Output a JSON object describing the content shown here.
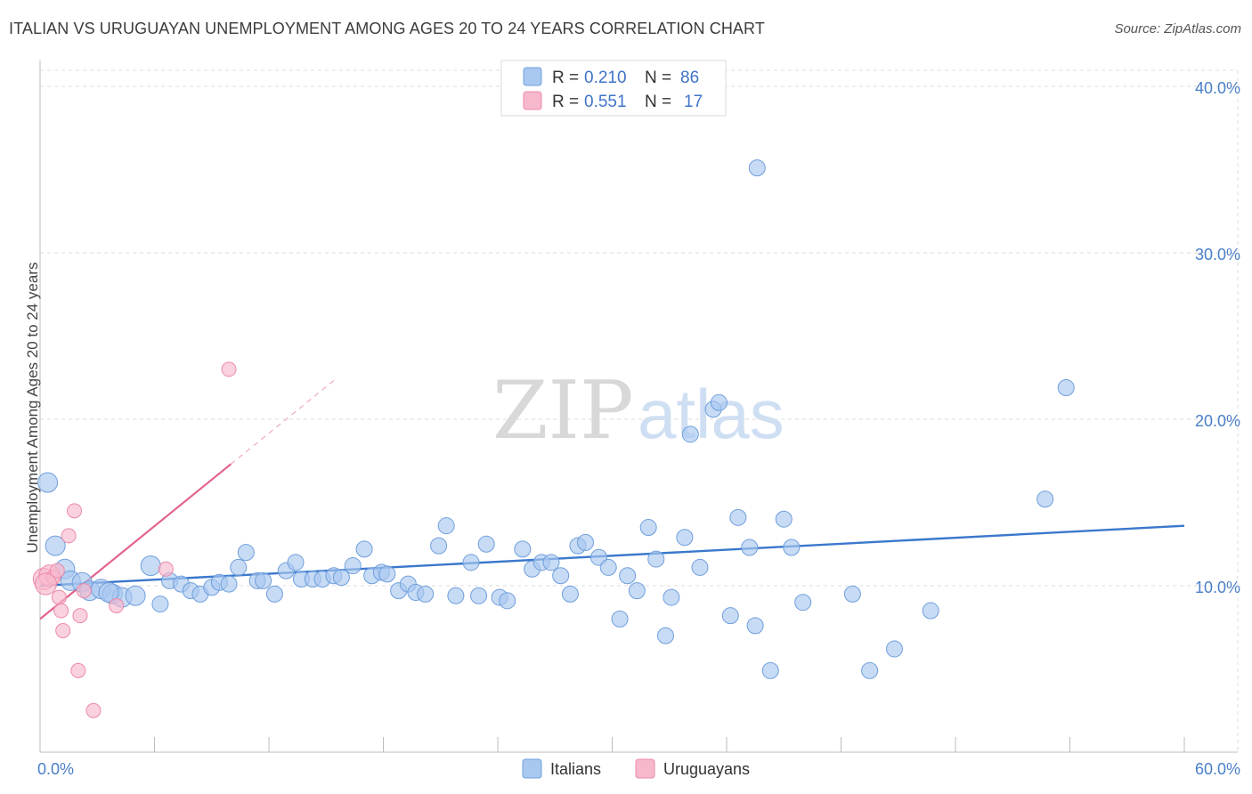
{
  "title": "ITALIAN VS URUGUAYAN UNEMPLOYMENT AMONG AGES 20 TO 24 YEARS CORRELATION CHART",
  "source": "Source: ZipAtlas.com",
  "watermark": {
    "zip": "ZIP",
    "atlas": "atlas"
  },
  "legend": {
    "rows": [
      {
        "r_label": "R =",
        "r_value": "0.210",
        "n_label": "N =",
        "n_value": "86",
        "color": "#a9c8f0"
      },
      {
        "r_label": "R =",
        "r_value": "0.551",
        "n_label": "N =",
        "n_value": "17",
        "color": "#f7b8cc"
      }
    ]
  },
  "bottom_legend": [
    {
      "label": "Italians",
      "color": "#a9c8f0"
    },
    {
      "label": "Uruguayans",
      "color": "#f7b8cc"
    }
  ],
  "chart_data": {
    "type": "scatter",
    "title": "ITALIAN VS URUGUAYAN UNEMPLOYMENT AMONG AGES 20 TO 24 YEARS CORRELATION CHART",
    "xlabel": "",
    "ylabel": "Unemployment Among Ages 20 to 24 years",
    "xlim": [
      0,
      60
    ],
    "ylim": [
      0,
      40
    ],
    "x_tick_labels": [
      "0.0%",
      "60.0%"
    ],
    "y_ticks": [
      10,
      20,
      30,
      40
    ],
    "y_tick_labels": [
      "10.0%",
      "20.0%",
      "30.0%",
      "40.0%"
    ],
    "grid": true,
    "legend_position": "top-center",
    "series": [
      {
        "name": "Italians",
        "color": "#a9c8f0",
        "stroke": "#6f9fdc",
        "line_color": "#3a78cc",
        "trend": {
          "x": [
            0,
            60
          ],
          "y": [
            10.0,
            13.6
          ]
        },
        "points": [
          [
            0.4,
            16.2
          ],
          [
            0.8,
            12.4
          ],
          [
            1.3,
            11.0
          ],
          [
            1.6,
            10.3
          ],
          [
            2.2,
            10.2
          ],
          [
            2.6,
            9.7
          ],
          [
            3.2,
            9.8
          ],
          [
            3.8,
            9.5
          ],
          [
            4.3,
            9.3
          ],
          [
            5.0,
            9.4
          ],
          [
            5.8,
            11.2
          ],
          [
            6.3,
            8.9
          ],
          [
            6.8,
            10.3
          ],
          [
            7.4,
            10.1
          ],
          [
            7.9,
            9.7
          ],
          [
            8.4,
            9.5
          ],
          [
            9.0,
            9.9
          ],
          [
            9.4,
            10.2
          ],
          [
            9.9,
            10.1
          ],
          [
            10.4,
            11.1
          ],
          [
            10.8,
            12.0
          ],
          [
            11.4,
            10.3
          ],
          [
            11.7,
            10.3
          ],
          [
            12.3,
            9.5
          ],
          [
            12.9,
            10.9
          ],
          [
            13.4,
            11.4
          ],
          [
            13.7,
            10.4
          ],
          [
            14.3,
            10.4
          ],
          [
            14.8,
            10.4
          ],
          [
            15.4,
            10.6
          ],
          [
            15.8,
            10.5
          ],
          [
            16.4,
            11.2
          ],
          [
            17.0,
            12.2
          ],
          [
            17.4,
            10.6
          ],
          [
            17.9,
            10.8
          ],
          [
            18.2,
            10.7
          ],
          [
            18.8,
            9.7
          ],
          [
            19.3,
            10.1
          ],
          [
            19.7,
            9.6
          ],
          [
            20.2,
            9.5
          ],
          [
            20.9,
            12.4
          ],
          [
            21.3,
            13.6
          ],
          [
            21.8,
            9.4
          ],
          [
            22.6,
            11.4
          ],
          [
            23.0,
            9.4
          ],
          [
            23.4,
            12.5
          ],
          [
            24.1,
            9.3
          ],
          [
            24.5,
            9.1
          ],
          [
            25.3,
            12.2
          ],
          [
            25.8,
            11.0
          ],
          [
            26.3,
            11.4
          ],
          [
            26.8,
            11.4
          ],
          [
            27.3,
            10.6
          ],
          [
            27.8,
            9.5
          ],
          [
            28.2,
            12.4
          ],
          [
            28.6,
            12.6
          ],
          [
            29.3,
            11.7
          ],
          [
            29.8,
            11.1
          ],
          [
            30.4,
            8.0
          ],
          [
            30.8,
            10.6
          ],
          [
            31.3,
            9.7
          ],
          [
            31.9,
            13.5
          ],
          [
            32.3,
            11.6
          ],
          [
            32.8,
            7.0
          ],
          [
            33.1,
            9.3
          ],
          [
            33.8,
            12.9
          ],
          [
            34.1,
            19.1
          ],
          [
            34.6,
            11.1
          ],
          [
            35.3,
            20.6
          ],
          [
            35.6,
            21.0
          ],
          [
            36.2,
            8.2
          ],
          [
            36.6,
            14.1
          ],
          [
            37.2,
            12.3
          ],
          [
            37.6,
            35.1
          ],
          [
            37.5,
            7.6
          ],
          [
            38.3,
            4.9
          ],
          [
            39.0,
            14.0
          ],
          [
            39.4,
            12.3
          ],
          [
            40.0,
            9.0
          ],
          [
            42.6,
            9.5
          ],
          [
            43.5,
            4.9
          ],
          [
            44.8,
            6.2
          ],
          [
            46.7,
            8.5
          ],
          [
            52.7,
            15.2
          ],
          [
            53.8,
            21.9
          ],
          [
            3.6,
            9.6
          ]
        ]
      },
      {
        "name": "Uruguayans",
        "color": "#f7b8cc",
        "stroke": "#eb8aa8",
        "line_color": "#e2648a",
        "trend": {
          "x": [
            0,
            10.0
          ],
          "y": [
            8.0,
            17.3
          ]
        },
        "points": [
          [
            0.2,
            10.4
          ],
          [
            0.5,
            10.6
          ],
          [
            0.7,
            10.5
          ],
          [
            0.9,
            10.9
          ],
          [
            1.0,
            9.3
          ],
          [
            1.1,
            8.5
          ],
          [
            1.2,
            7.3
          ],
          [
            1.5,
            13.0
          ],
          [
            1.8,
            14.5
          ],
          [
            2.0,
            4.9
          ],
          [
            2.1,
            8.2
          ],
          [
            2.3,
            9.7
          ],
          [
            2.8,
            2.5
          ],
          [
            4.0,
            8.8
          ],
          [
            6.6,
            11.0
          ],
          [
            9.9,
            23.0
          ],
          [
            0.3,
            10.1
          ]
        ]
      }
    ]
  }
}
